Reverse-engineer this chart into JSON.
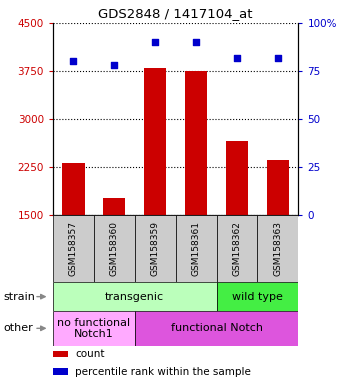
{
  "title": "GDS2848 / 1417104_at",
  "samples": [
    "GSM158357",
    "GSM158360",
    "GSM158359",
    "GSM158361",
    "GSM158362",
    "GSM158363"
  ],
  "counts": [
    2310,
    1760,
    3800,
    3750,
    2660,
    2360
  ],
  "percentiles": [
    80,
    78,
    90,
    90,
    82,
    82
  ],
  "ylim_left": [
    1500,
    4500
  ],
  "ylim_right": [
    0,
    100
  ],
  "yticks_left": [
    1500,
    2250,
    3000,
    3750,
    4500
  ],
  "yticks_right": [
    0,
    25,
    50,
    75,
    100
  ],
  "ytick_labels_left": [
    "1500",
    "2250",
    "3000",
    "3750",
    "4500"
  ],
  "ytick_labels_right": [
    "0",
    "25",
    "50",
    "75",
    "100%"
  ],
  "bar_color": "#cc0000",
  "dot_color": "#0000cc",
  "strain_groups": [
    {
      "text": "transgenic",
      "start": 0,
      "end": 4,
      "color": "#bbffbb"
    },
    {
      "text": "wild type",
      "start": 4,
      "end": 6,
      "color": "#44ee44"
    }
  ],
  "other_groups": [
    {
      "text": "no functional\nNotch1",
      "start": 0,
      "end": 2,
      "color": "#ffaaff"
    },
    {
      "text": "functional Notch",
      "start": 2,
      "end": 6,
      "color": "#dd55dd"
    }
  ],
  "legend_items": [
    {
      "color": "#cc0000",
      "label": "count"
    },
    {
      "color": "#0000cc",
      "label": "percentile rank within the sample"
    }
  ]
}
